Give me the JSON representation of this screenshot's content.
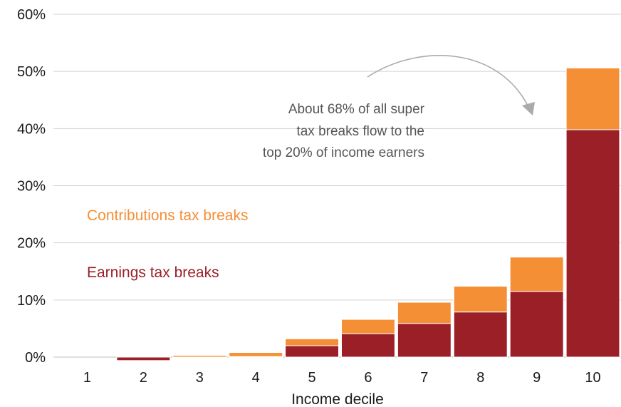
{
  "chart_data": {
    "type": "bar",
    "stacked": true,
    "xlabel": "Income decile",
    "ylabel": "",
    "categories": [
      "1",
      "2",
      "3",
      "4",
      "5",
      "6",
      "7",
      "8",
      "9",
      "10"
    ],
    "series": [
      {
        "name": "Earnings tax breaks",
        "color": "#9b1f27",
        "values": [
          0,
          -0.6,
          0,
          0.1,
          2.0,
          4.1,
          5.9,
          7.9,
          11.5,
          39.8
        ]
      },
      {
        "name": "Contributions tax breaks",
        "color": "#f58f36",
        "values": [
          0,
          0,
          0.3,
          0.7,
          1.2,
          2.5,
          3.7,
          4.5,
          6.0,
          10.8
        ]
      }
    ],
    "ylim": [
      0,
      60
    ],
    "yticks": [
      0,
      10,
      20,
      30,
      40,
      50,
      60
    ],
    "ytick_labels": [
      "0%",
      "10%",
      "20%",
      "30%",
      "40%",
      "50%",
      "60%"
    ],
    "grid": true,
    "annotation": {
      "lines": [
        "About 68% of all super",
        "tax breaks flow to the",
        "top 20% of income earners"
      ],
      "arrow_color": "#aaaaaa"
    }
  }
}
